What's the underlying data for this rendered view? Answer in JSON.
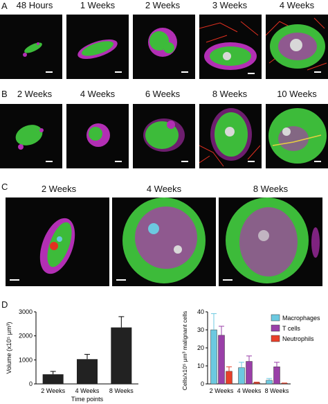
{
  "panels": {
    "A": {
      "letter": "A",
      "timepoints": [
        "48 Hours",
        "1 Weeks",
        "2 Weeks",
        "3 Weeks",
        "4 Weeks"
      ]
    },
    "B": {
      "letter": "B",
      "timepoints": [
        "2 Weeks",
        "4 Weeks",
        "6 Weeks",
        "8 Weeks",
        "10 Weeks"
      ]
    },
    "C": {
      "letter": "C",
      "timepoints": [
        "2 Weeks",
        "4 Weeks",
        "8 Weeks"
      ]
    },
    "D": {
      "letter": "D"
    }
  },
  "colors": {
    "green": "#3dbb3a",
    "magenta": "#b22fb4",
    "red": "#e23020",
    "macrophages": "#6cc9e0",
    "t_cells": "#9a3fa8",
    "neutrophils": "#e8402a",
    "bar_dark": "#222222"
  },
  "chart_data": [
    {
      "type": "bar",
      "categories": [
        "2 Weeks",
        "4 Weeks",
        "8 Weeks"
      ],
      "values": [
        400,
        1030,
        2350
      ],
      "errors": [
        120,
        200,
        450
      ],
      "xlabel": "Time points",
      "ylabel": "Volume (x10⁵ μm³)",
      "ylim": [
        0,
        3000
      ],
      "yticks": [
        0,
        1000,
        2000,
        3000
      ],
      "grid": false
    },
    {
      "type": "bar",
      "categories": [
        "2 Weeks",
        "4 Weeks",
        "8 Weeks"
      ],
      "series": [
        {
          "name": "Macrophages",
          "values": [
            30,
            9,
            2
          ],
          "errors": [
            9,
            3,
            1
          ]
        },
        {
          "name": "T cells",
          "values": [
            27,
            12.5,
            9.5
          ],
          "errors": [
            5,
            3,
            2.5
          ]
        },
        {
          "name": "Neutrophils",
          "values": [
            7,
            0.7,
            0.3
          ],
          "errors": [
            2.5,
            0.3,
            0.2
          ]
        }
      ],
      "xlabel": "",
      "ylabel": "Cells/x10⁵ μm³ malignant cells",
      "ylim": [
        0,
        40
      ],
      "yticks": [
        0,
        10,
        20,
        30,
        40
      ],
      "legend": "top-right",
      "grid": false
    }
  ]
}
